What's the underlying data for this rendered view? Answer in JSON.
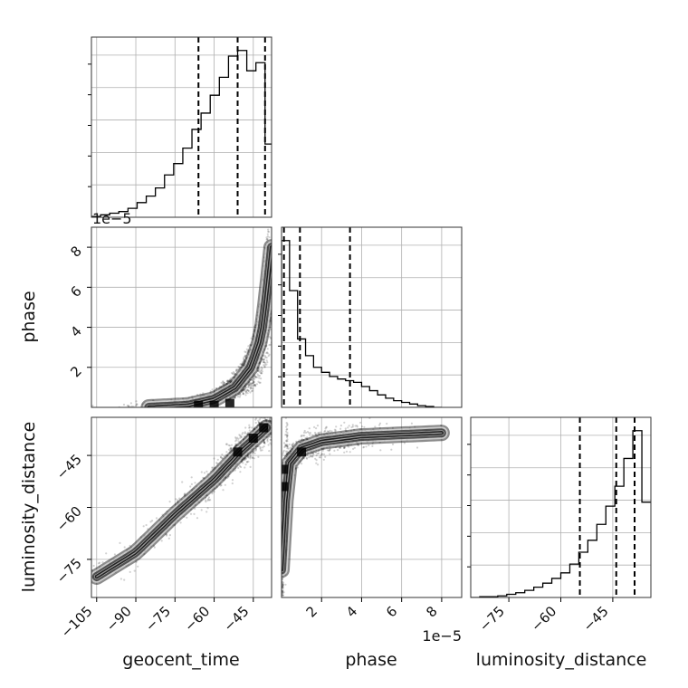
{
  "chart_data": {
    "type": "corner",
    "parameters": [
      "geocent_time",
      "phase",
      "luminosity_distance"
    ],
    "axis_labels": {
      "x": [
        "geocent_time",
        "phase",
        "luminosity_distance"
      ],
      "y": [
        "phase",
        "luminosity_distance"
      ]
    },
    "ranges": {
      "geocent_time": [
        -107,
        -38
      ],
      "phase": [
        0,
        9e-05
      ],
      "luminosity_distance": [
        -86,
        -34
      ]
    },
    "ticks": {
      "geocent_time": [
        "−105",
        "−90",
        "−75",
        "−60",
        "−45"
      ],
      "phase_x": [
        "2",
        "4",
        "6",
        "8"
      ],
      "phase_y": [
        "2",
        "4",
        "6",
        "8"
      ],
      "luminosity_distance_x": [
        "−75",
        "−60",
        "−45"
      ],
      "luminosity_distance_y": [
        "−45",
        "−60",
        "−75"
      ]
    },
    "tick_values": {
      "geocent_time": [
        -105,
        -90,
        -75,
        -60,
        -45
      ],
      "phase": [
        2e-05,
        4e-05,
        6e-05,
        8e-05
      ],
      "luminosity_distance": [
        -75,
        -60,
        -45
      ]
    },
    "offset_labels": {
      "phase_x": "1e−5",
      "phase_y": "1e−5"
    },
    "histograms": {
      "geocent_time": {
        "bin_edges": [
          -107,
          -103.5,
          -100,
          -96.5,
          -93,
          -89.5,
          -86,
          -82.5,
          -79,
          -75.5,
          -72,
          -68.5,
          -65,
          -61.5,
          -58,
          -54.5,
          -51,
          -47.5,
          -44,
          -40.5,
          -38
        ],
        "counts": [
          1,
          3,
          5,
          7,
          11,
          18,
          26,
          36,
          52,
          66,
          85,
          108,
          128,
          150,
          172,
          198,
          205,
          180,
          190,
          90
        ]
      },
      "phase": {
        "bin_edges": [
          0,
          4e-06,
          8e-06,
          1.2e-05,
          1.6e-05,
          2e-05,
          2.4e-05,
          2.8e-05,
          3.2e-05,
          3.6e-05,
          4e-05,
          4.4e-05,
          4.8e-05,
          5.2e-05,
          5.6e-05,
          6e-05,
          6.4e-05,
          6.8e-05,
          7.2e-05,
          7.6e-05,
          8e-05
        ],
        "counts": [
          200,
          140,
          82,
          62,
          48,
          42,
          37,
          34,
          32,
          30,
          25,
          20,
          15,
          11,
          8,
          6,
          4,
          2,
          1,
          0
        ]
      },
      "luminosity_distance": {
        "bin_edges": [
          -86,
          -83.4,
          -80.8,
          -78.2,
          -75.6,
          -73,
          -70.4,
          -67.8,
          -65.2,
          -62.6,
          -60,
          -57.4,
          -54.8,
          -52.2,
          -49.6,
          -47,
          -44.4,
          -41.8,
          -39.2,
          -36.6,
          -34
        ],
        "counts": [
          0,
          1,
          1,
          2,
          4,
          6,
          9,
          13,
          18,
          24,
          31,
          42,
          57,
          72,
          92,
          115,
          140,
          175,
          210,
          120
        ]
      }
    },
    "quantiles": {
      "geocent_time": [
        -66,
        -51,
        -40.5
      ],
      "phase": [
        1.2e-06,
        9.2e-06,
        3.42e-05
      ],
      "luminosity_distance": [
        -54.5,
        -44,
        -38.7
      ]
    },
    "scatter_trend": {
      "geocent_time_vs_phase": {
        "x": [
          -85,
          -70,
          -60,
          -52,
          -46,
          -42,
          -40,
          -38
        ],
        "y": [
          0.0,
          1e-06,
          4e-06,
          1e-05,
          2e-05,
          3.5e-05,
          5.5e-05,
          8e-05
        ]
      },
      "geocent_time_vs_luminosity_distance": {
        "x": [
          -105,
          -90,
          -75,
          -60,
          -50,
          -40
        ],
        "y": [
          -80,
          -73,
          -62,
          -52,
          -44,
          -37
        ]
      },
      "phase_vs_luminosity_distance": {
        "x": [
          0.0,
          3e-06,
          1e-05,
          2e-05,
          4e-05,
          6e-05,
          8e-05
        ],
        "y": [
          -78,
          -48,
          -43,
          -41,
          -39.5,
          -39,
          -38.5
        ]
      }
    },
    "grid": true,
    "colors": {
      "density": "#000000",
      "hist": "#000000",
      "grid": "#b0b0b0"
    }
  }
}
